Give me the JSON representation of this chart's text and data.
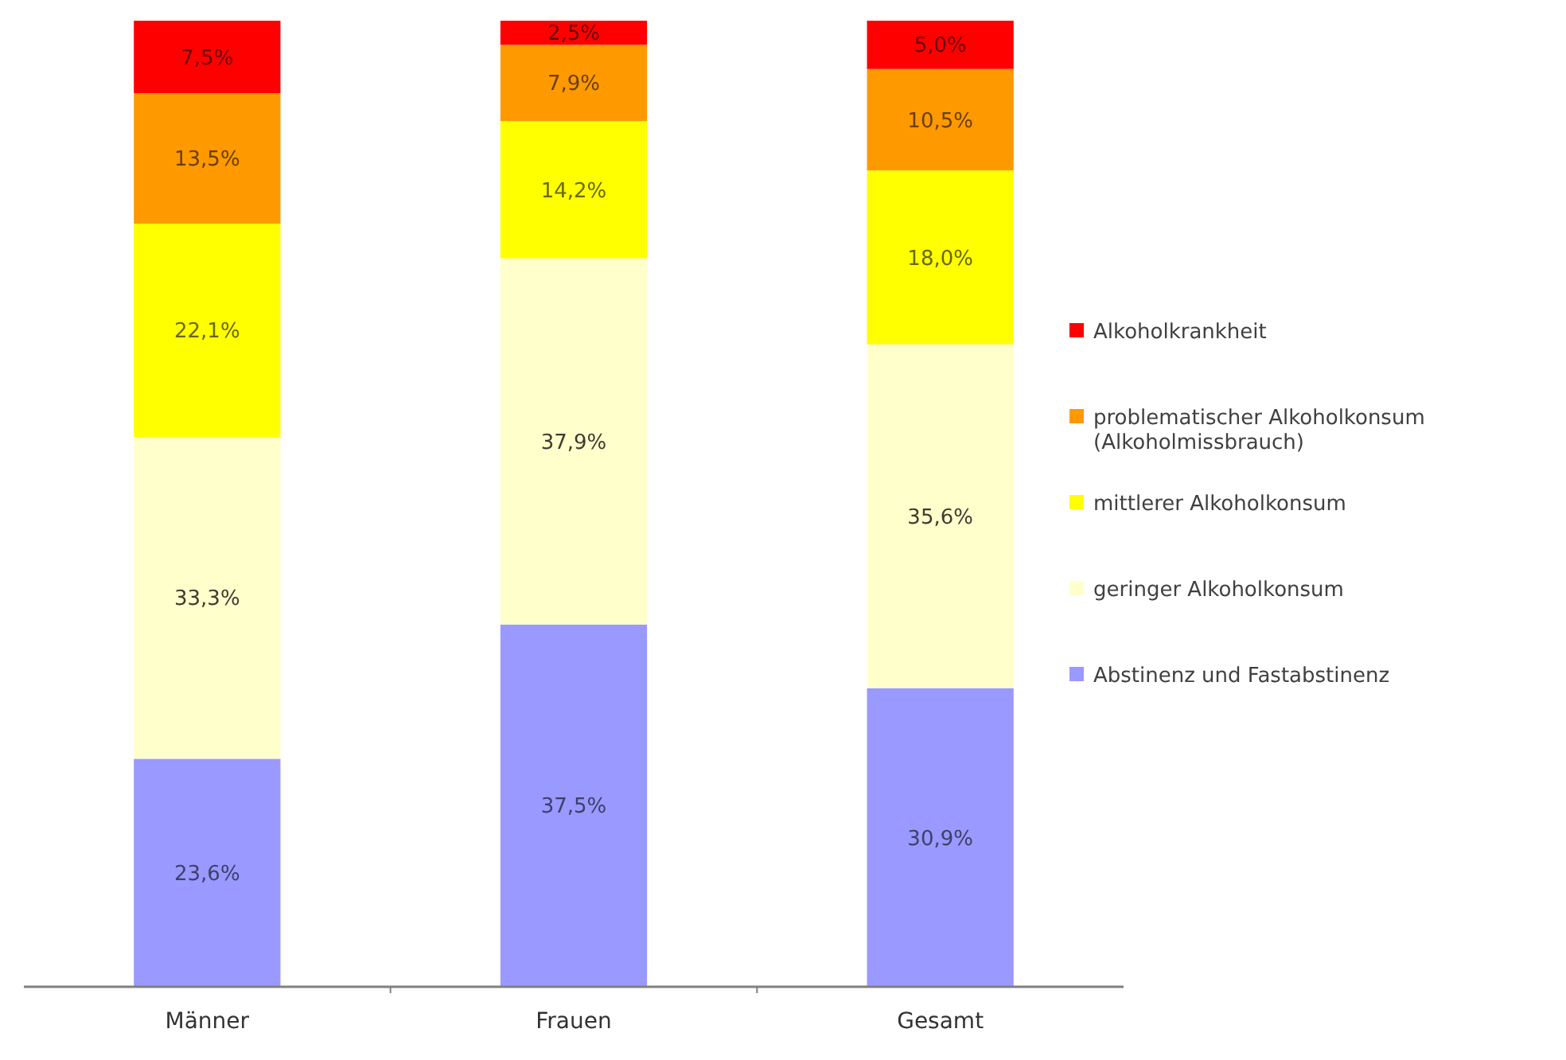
{
  "chart_data": {
    "type": "bar",
    "stacked": true,
    "categories": [
      "Männer",
      "Frauen",
      "Gesamt"
    ],
    "ylim": [
      0,
      100
    ],
    "tick_labels": "x",
    "legend": "right",
    "series": [
      {
        "name": "Abstinenz und Fastabstinenz",
        "color": "#9999ff",
        "values": [
          23.6,
          37.5,
          30.9
        ],
        "value_labels": [
          "23,6%",
          "37,5%",
          "30,9%"
        ]
      },
      {
        "name": "geringer Alkoholkonsum",
        "color": "#ffffcc",
        "values": [
          33.3,
          37.9,
          35.6
        ],
        "value_labels": [
          "33,3%",
          "37,9%",
          "35,6%"
        ]
      },
      {
        "name": "mittlerer Alkoholkonsum",
        "color": "#ffff00",
        "values": [
          22.1,
          14.2,
          18.0
        ],
        "value_labels": [
          "22,1%",
          "14,2%",
          "18,0%"
        ]
      },
      {
        "name": "problematischer Alkoholkonsum (Alkoholmissbrauch)",
        "color": "#ff9900",
        "values": [
          13.5,
          7.9,
          10.5
        ],
        "value_labels": [
          "13,5%",
          "7,9%",
          "10,5%"
        ]
      },
      {
        "name": "Alkoholkrankheit",
        "color": "#ff0000",
        "values": [
          7.5,
          2.5,
          5.0
        ],
        "value_labels": [
          "7,5%",
          "2,5%",
          "5,0%"
        ]
      }
    ]
  }
}
